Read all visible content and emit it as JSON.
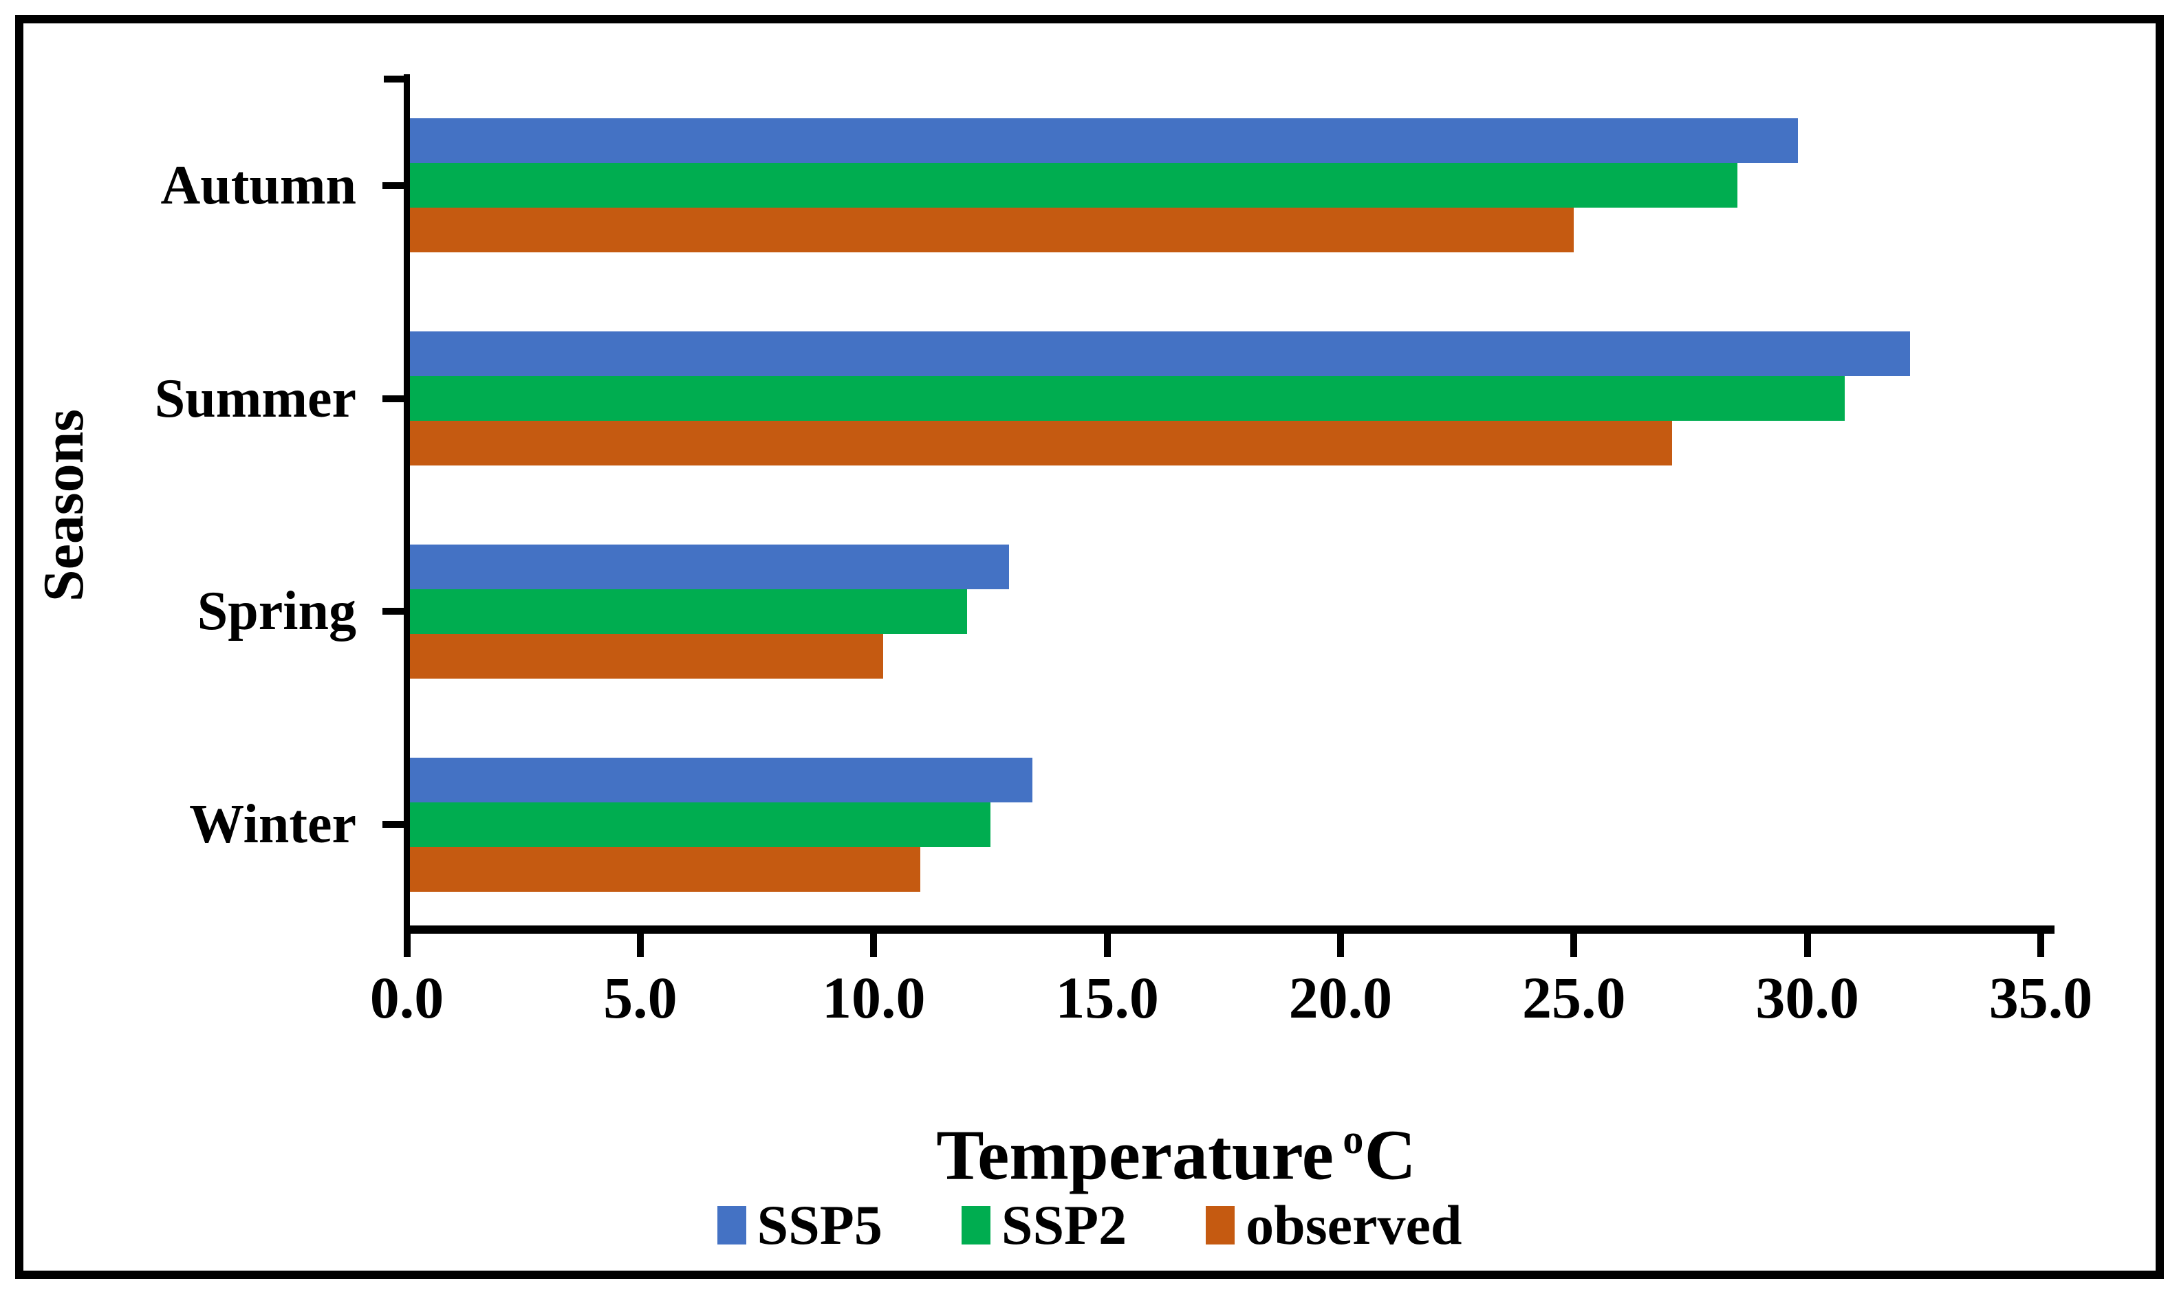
{
  "chart_data": {
    "type": "bar",
    "orientation": "horizontal",
    "title": "",
    "categories": [
      "Autumn",
      "Summer",
      "Spring",
      "Winter"
    ],
    "category_axis_order": "top-to-bottom",
    "series": [
      {
        "name": "SSP5",
        "color": "#4472C4",
        "values": [
          29.8,
          32.2,
          12.9,
          13.4
        ]
      },
      {
        "name": "SSP2",
        "color": "#00AD50",
        "values": [
          28.5,
          30.8,
          12.0,
          12.5
        ]
      },
      {
        "name": "observed",
        "color": "#C55A11",
        "values": [
          25.0,
          27.1,
          10.2,
          11.0
        ]
      }
    ],
    "series_order_within_group": "top-to-bottom",
    "bar_gap_within_group": 0,
    "xlabel": {
      "main": "Temperature",
      "sup": "o",
      "unit": "C"
    },
    "ylabel": "Seasons",
    "xlim": [
      0,
      35
    ],
    "x_ticks": [
      0,
      5,
      10,
      15,
      20,
      25,
      30,
      35
    ],
    "x_tick_labels": [
      "0.0",
      "5.0",
      "10.0",
      "15.0",
      "20.0",
      "25.0",
      "30.0",
      "35.0"
    ],
    "grid": false,
    "legend": {
      "position": "bottom",
      "items": [
        "SSP5",
        "SSP2",
        "observed"
      ]
    }
  },
  "style": {
    "background": "#ffffff",
    "border_color": "#000000",
    "axis_color": "#000000",
    "text_color": "#000000"
  }
}
